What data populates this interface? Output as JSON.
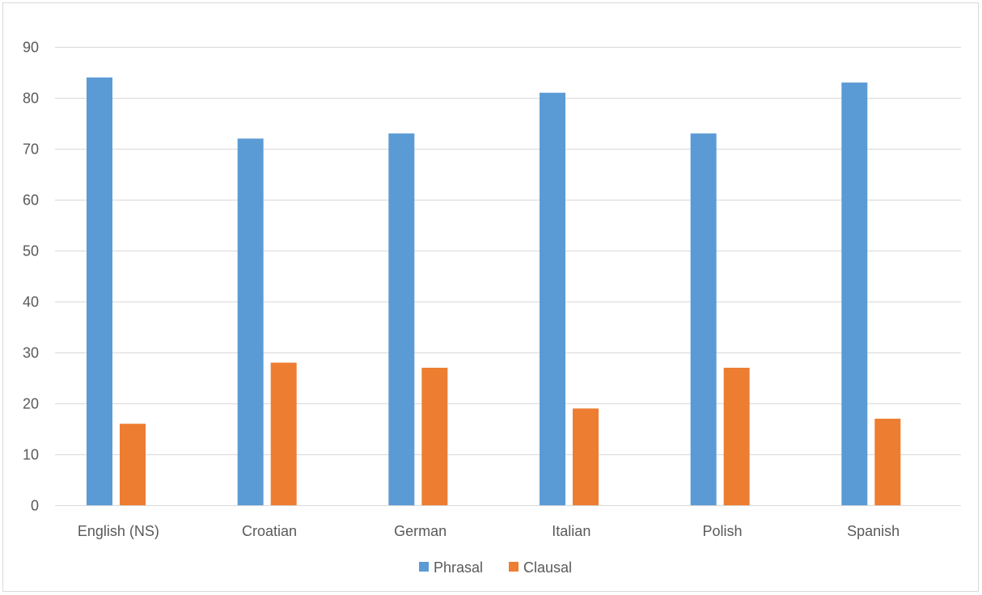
{
  "chart_data": {
    "type": "bar",
    "title": "",
    "xlabel": "",
    "ylabel": "",
    "categories": [
      "English (NS)",
      "Croatian",
      "German",
      "Italian",
      "Polish",
      "Spanish"
    ],
    "series": [
      {
        "name": "Phrasal",
        "color": "#5b9bd5",
        "values": [
          84,
          72,
          73,
          81,
          73,
          83
        ]
      },
      {
        "name": "Clausal",
        "color": "#ed7d31",
        "values": [
          16,
          28,
          27,
          19,
          27,
          17
        ]
      }
    ],
    "ylim": [
      0,
      90
    ],
    "yticks": [
      0,
      10,
      20,
      30,
      40,
      50,
      60,
      70,
      80,
      90
    ],
    "grid": true,
    "legend_position": "bottom"
  }
}
